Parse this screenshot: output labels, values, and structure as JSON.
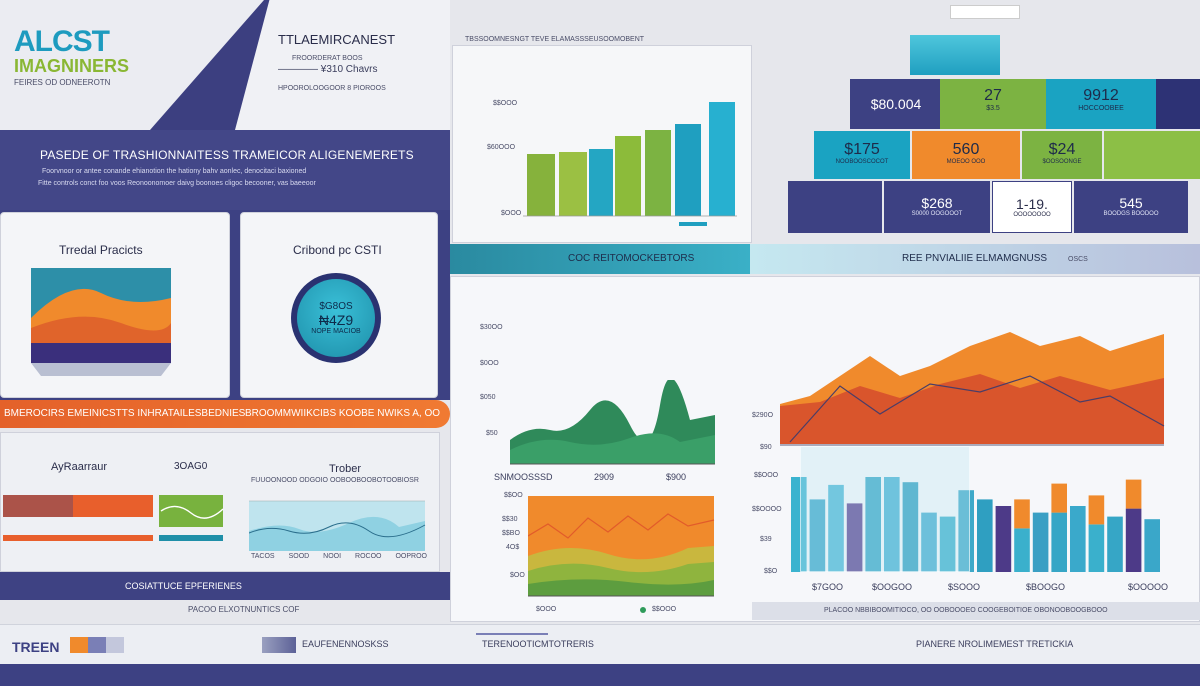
{
  "header": {
    "logo_line1": "ALCST",
    "logo_line2": "IMAGNINERS",
    "logo_line3": "FEIRES OD ODNEEROTN",
    "mgmt_title": "TTLAEMIRCANEST",
    "mgmt_sub1": "FROORDERAT BOOS",
    "mgmt_sub2": "———— ¥310 Chavrs",
    "mgmt_sub3": "HPOOROLOOGOOR 8 PIOROOS",
    "chart_title": "TBSSOOMNESNGT TEVE ELAMASSSEUSOOMOBENT"
  },
  "banner": {
    "title": "PASEDE OF TRASHIONNAITESS TRAMEICOR ALIGENEMERETS",
    "line1": "Foorvnoor or antee conande ehianotion the hationy bahv aonlec, denocitaci baxioned",
    "line2": "Fitte controls conct foo voos Reonoonomoer daivg boonoes cligoc becooner, vas baeeoor"
  },
  "cards": {
    "trend_title": "Trredal Pracicts",
    "cost_title": "Cribond pc CSTI",
    "cost_value1": "$G8OS",
    "cost_value2": "₦4Z9",
    "cost_value3": "NOPE MACIOB"
  },
  "orange_bar": {
    "left": "BMEROCIRS EMEINICSTTS INHRATAILESBEDNIES",
    "right": "BROOMMWIIKCIBS KOOBE NWIKS A, OO"
  },
  "lower_left": {
    "title1": "AyRaarraur",
    "value1": "3OAG0",
    "title2": "Trober",
    "subtitle2": "FUUOONOOD ODGOIO OOBOOBOOBOTOOBIOSR",
    "axis_labels": [
      "TACOS",
      "SOOD",
      "NOOI",
      "ROCOO",
      "OOPROO"
    ],
    "footer": "COSIATTUCE EPFERIENES"
  },
  "top_bar_chart": {
    "axis_labels": [
      "$$OOO",
      "$60OOO",
      "$OOO"
    ]
  },
  "kpi": {
    "row1": [
      {
        "value": "$80.004",
        "label": ""
      },
      {
        "value": "27",
        "label": "$3.5"
      },
      {
        "value": "9912",
        "label": "HOCCOOBEE"
      }
    ],
    "row2": [
      {
        "value": "$175",
        "label": "NOOBOOSCOCOT"
      },
      {
        "value": "560",
        "label": "MOEOO OOO"
      },
      {
        "value": "$24",
        "label": "$OOSOONGE"
      }
    ],
    "row3": [
      {
        "value": "$268",
        "label": "S0000 OOGOOOT"
      },
      {
        "value": "1-19.",
        "label": "OOOOOOOO"
      },
      {
        "value": "545",
        "label": "BOODGS BOODOO"
      }
    ]
  },
  "mid_band": {
    "left": "COC REITOMOCKEBTORS",
    "right": "REE PNVIALIIE ELMAMGNUSS",
    "right_tag": "OSCS"
  },
  "area_chart": {
    "y_labels": [
      "$30OO",
      "$0OO",
      "$050",
      "$50"
    ],
    "x_labels": [
      "SNMOOSSSD",
      "2909",
      "$900"
    ]
  },
  "lower_mid_chart": {
    "y_labels": [
      "$$OO",
      "$$30",
      "$$BO",
      "4O$",
      "$OO"
    ],
    "x_labels": [
      "$OOO",
      "$$OOO"
    ]
  },
  "right_chart": {
    "y_labels": [
      "$290O",
      "$90",
      "$$OOO",
      "$$OOOO",
      "$39",
      "$$O"
    ],
    "x_labels": [
      "$7GOO",
      "$OOGOO",
      "$SOOO",
      "$BOOGO",
      "$OOOOO"
    ],
    "footer": "PLACOO NBBIBOOMITIOCO, OO OOBOOOEO COOGEBOITIOE OBONOOBOOGBOOO",
    "bars": [
      {
        "h": 0.72,
        "c": "#3bb3cf"
      },
      {
        "h": 0.55,
        "c": "#3aa7c9"
      },
      {
        "h": 0.66,
        "c": "#4cb7d6"
      },
      {
        "h": 0.52,
        "c": "#5a3f8f"
      },
      {
        "h": 0.72,
        "c": "#36a6c6"
      },
      {
        "h": 0.72,
        "c": "#46b1d3"
      },
      {
        "h": 0.68,
        "c": "#2f9fc1"
      },
      {
        "h": 0.45,
        "c": "#43add0"
      },
      {
        "h": 0.42,
        "c": "#3ab0cc"
      },
      {
        "h": 0.62,
        "c": "#3ea9c9"
      },
      {
        "h": 0.55,
        "c": "#2f9fc1"
      },
      {
        "h": 0.5,
        "c": "#4d3a88"
      },
      {
        "h": 0.33,
        "c": "#3ab0cc"
      },
      {
        "h": 0.45,
        "c": "#3a9fc4"
      },
      {
        "h": 0.45,
        "c": "#36a6c6"
      },
      {
        "h": 0.5,
        "c": "#3aa9cb"
      },
      {
        "h": 0.36,
        "c": "#3ab0cc"
      },
      {
        "h": 0.42,
        "c": "#36a6c6"
      },
      {
        "h": 0.48,
        "c": "#4d3a88"
      },
      {
        "h": 0.4,
        "c": "#3aa7c9"
      }
    ]
  },
  "footer": {
    "center_top": "PACOO ELXOTNUNTICS COF",
    "logo": "TREEN",
    "item2": "EAUFENENNOSKSS",
    "item3": "TERENOOTICMTOTRERIS",
    "item4": "PIANERE NROLIMEMEST TRETICKIA"
  },
  "colors": {
    "navy": "#3b3f7e",
    "teal": "#1d9bb7",
    "green": "#7cb342",
    "orange": "#ef7b3a",
    "red": "#d9552c",
    "purple": "#4a3d88"
  }
}
